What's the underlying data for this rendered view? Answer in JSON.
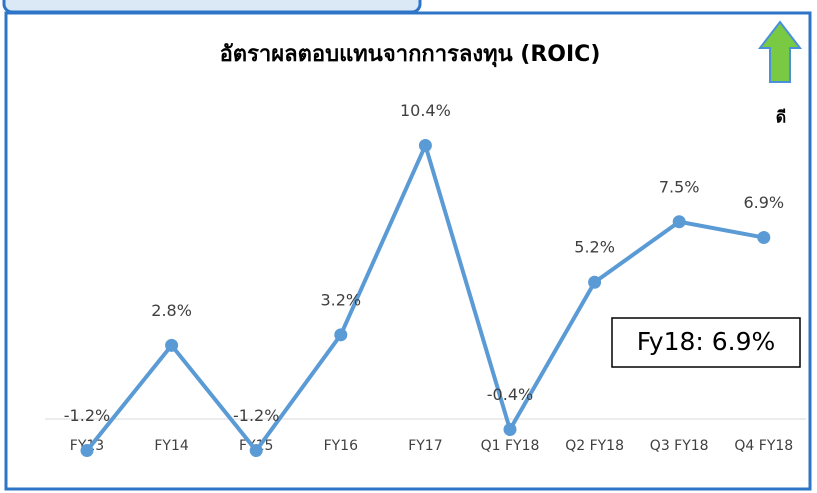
{
  "chart_data": {
    "type": "line",
    "title": "อัตราผลตอบแทนจากการลงทุน (ROIC)",
    "categories": [
      "FY13",
      "FY14",
      "FY15",
      "FY16",
      "FY17",
      "Q1 FY18",
      "Q2 FY18",
      "Q3 FY18",
      "Q4 FY18"
    ],
    "series": [
      {
        "name": "ROIC",
        "color": "#5b9bd5",
        "values": [
          -1.2,
          2.8,
          -1.2,
          3.2,
          10.4,
          -0.4,
          5.2,
          7.5,
          6.9
        ],
        "value_labels": [
          "-1.2%",
          "2.8%",
          "-1.2%",
          "3.2%",
          "10.4%",
          "-0.4%",
          "5.2%",
          "7.5%",
          "6.9%"
        ]
      }
    ],
    "ylim": [
      -2,
      12
    ],
    "annotations": [
      "Fy18: 6.9%",
      "ดี"
    ]
  }
}
